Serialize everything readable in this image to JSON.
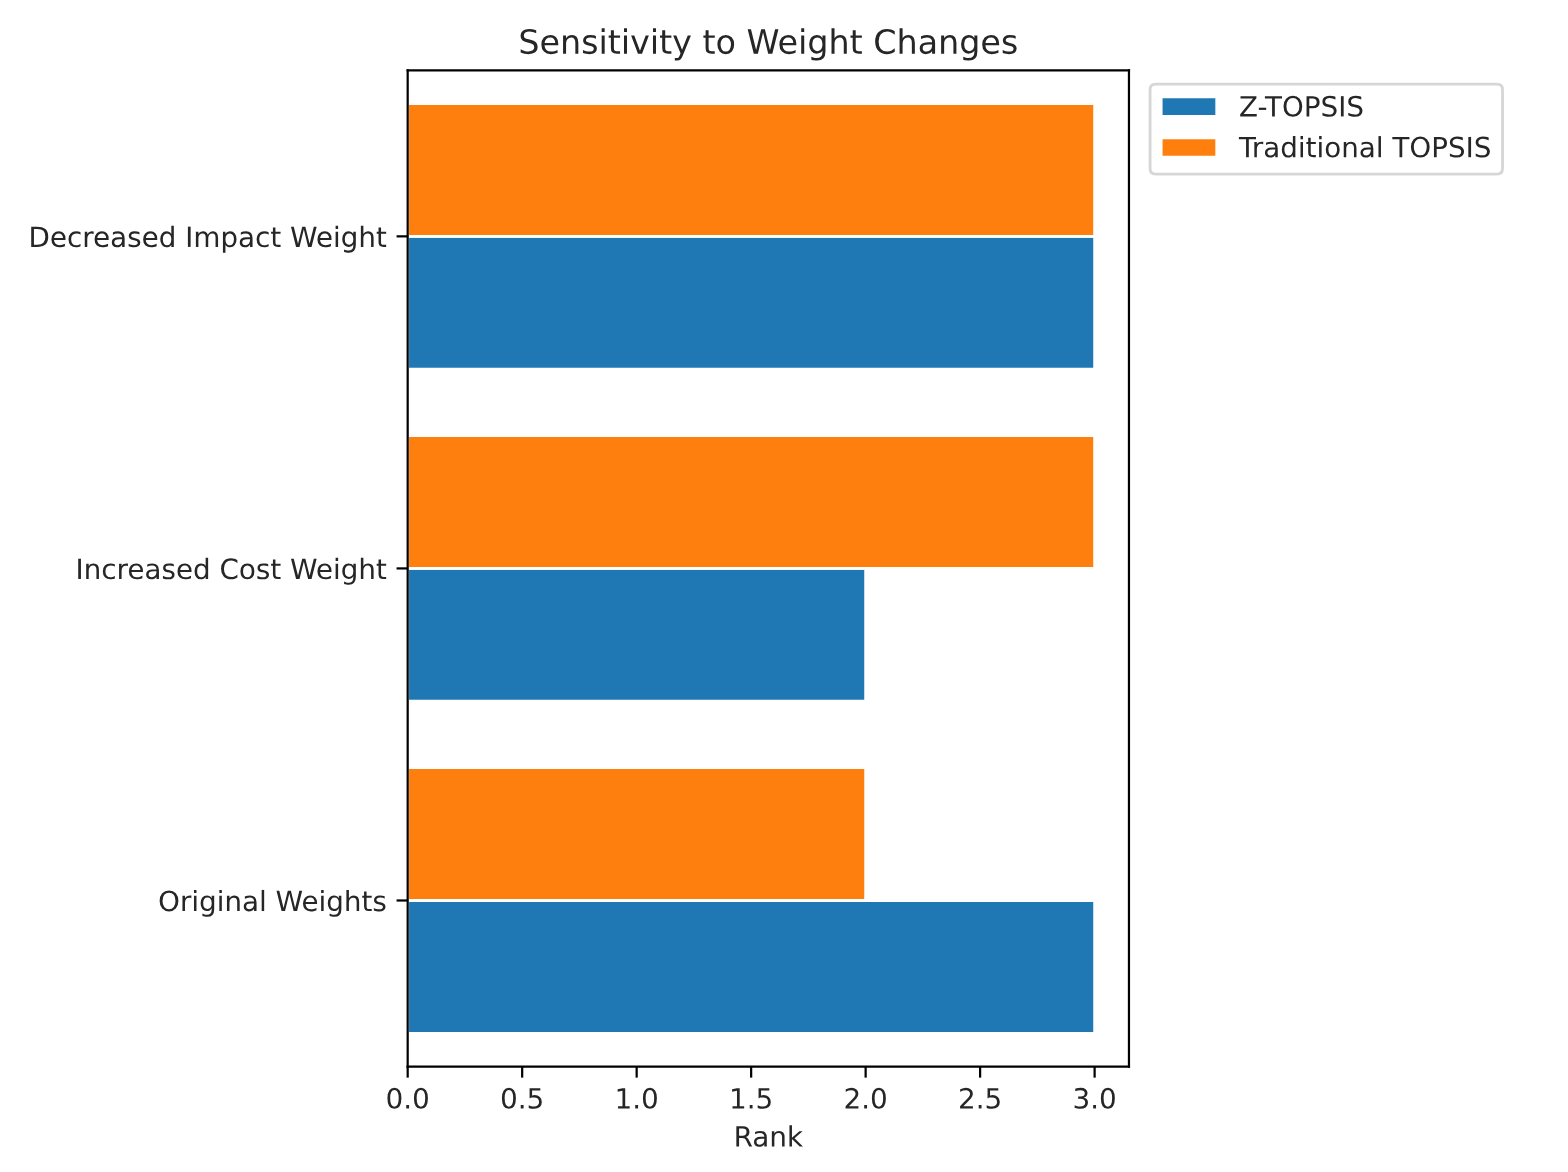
{
  "chart_data": {
    "type": "bar",
    "orientation": "horizontal",
    "title": "Sensitivity to Weight Changes",
    "xlabel": "Rank",
    "categories": [
      "Decreased Impact Weight",
      "Increased Cost Weight",
      "Original Weights"
    ],
    "series": [
      {
        "name": "Z-TOPSIS",
        "color": "#1f77b4",
        "values": [
          3,
          2,
          3
        ]
      },
      {
        "name": "Traditional TOPSIS",
        "color": "#ff7f0e",
        "values": [
          3,
          3,
          2
        ]
      }
    ],
    "xlim": [
      0,
      3.15
    ],
    "xticks": [
      {
        "value": 0,
        "label": "0.0"
      },
      {
        "value": 0.5,
        "label": "0.5"
      },
      {
        "value": 1,
        "label": "1.0"
      },
      {
        "value": 1.5,
        "label": "1.5"
      },
      {
        "value": 2,
        "label": "2.0"
      },
      {
        "value": 2.5,
        "label": "2.5"
      },
      {
        "value": 3,
        "label": "3.0"
      }
    ],
    "legend": "top right",
    "grid": false
  }
}
